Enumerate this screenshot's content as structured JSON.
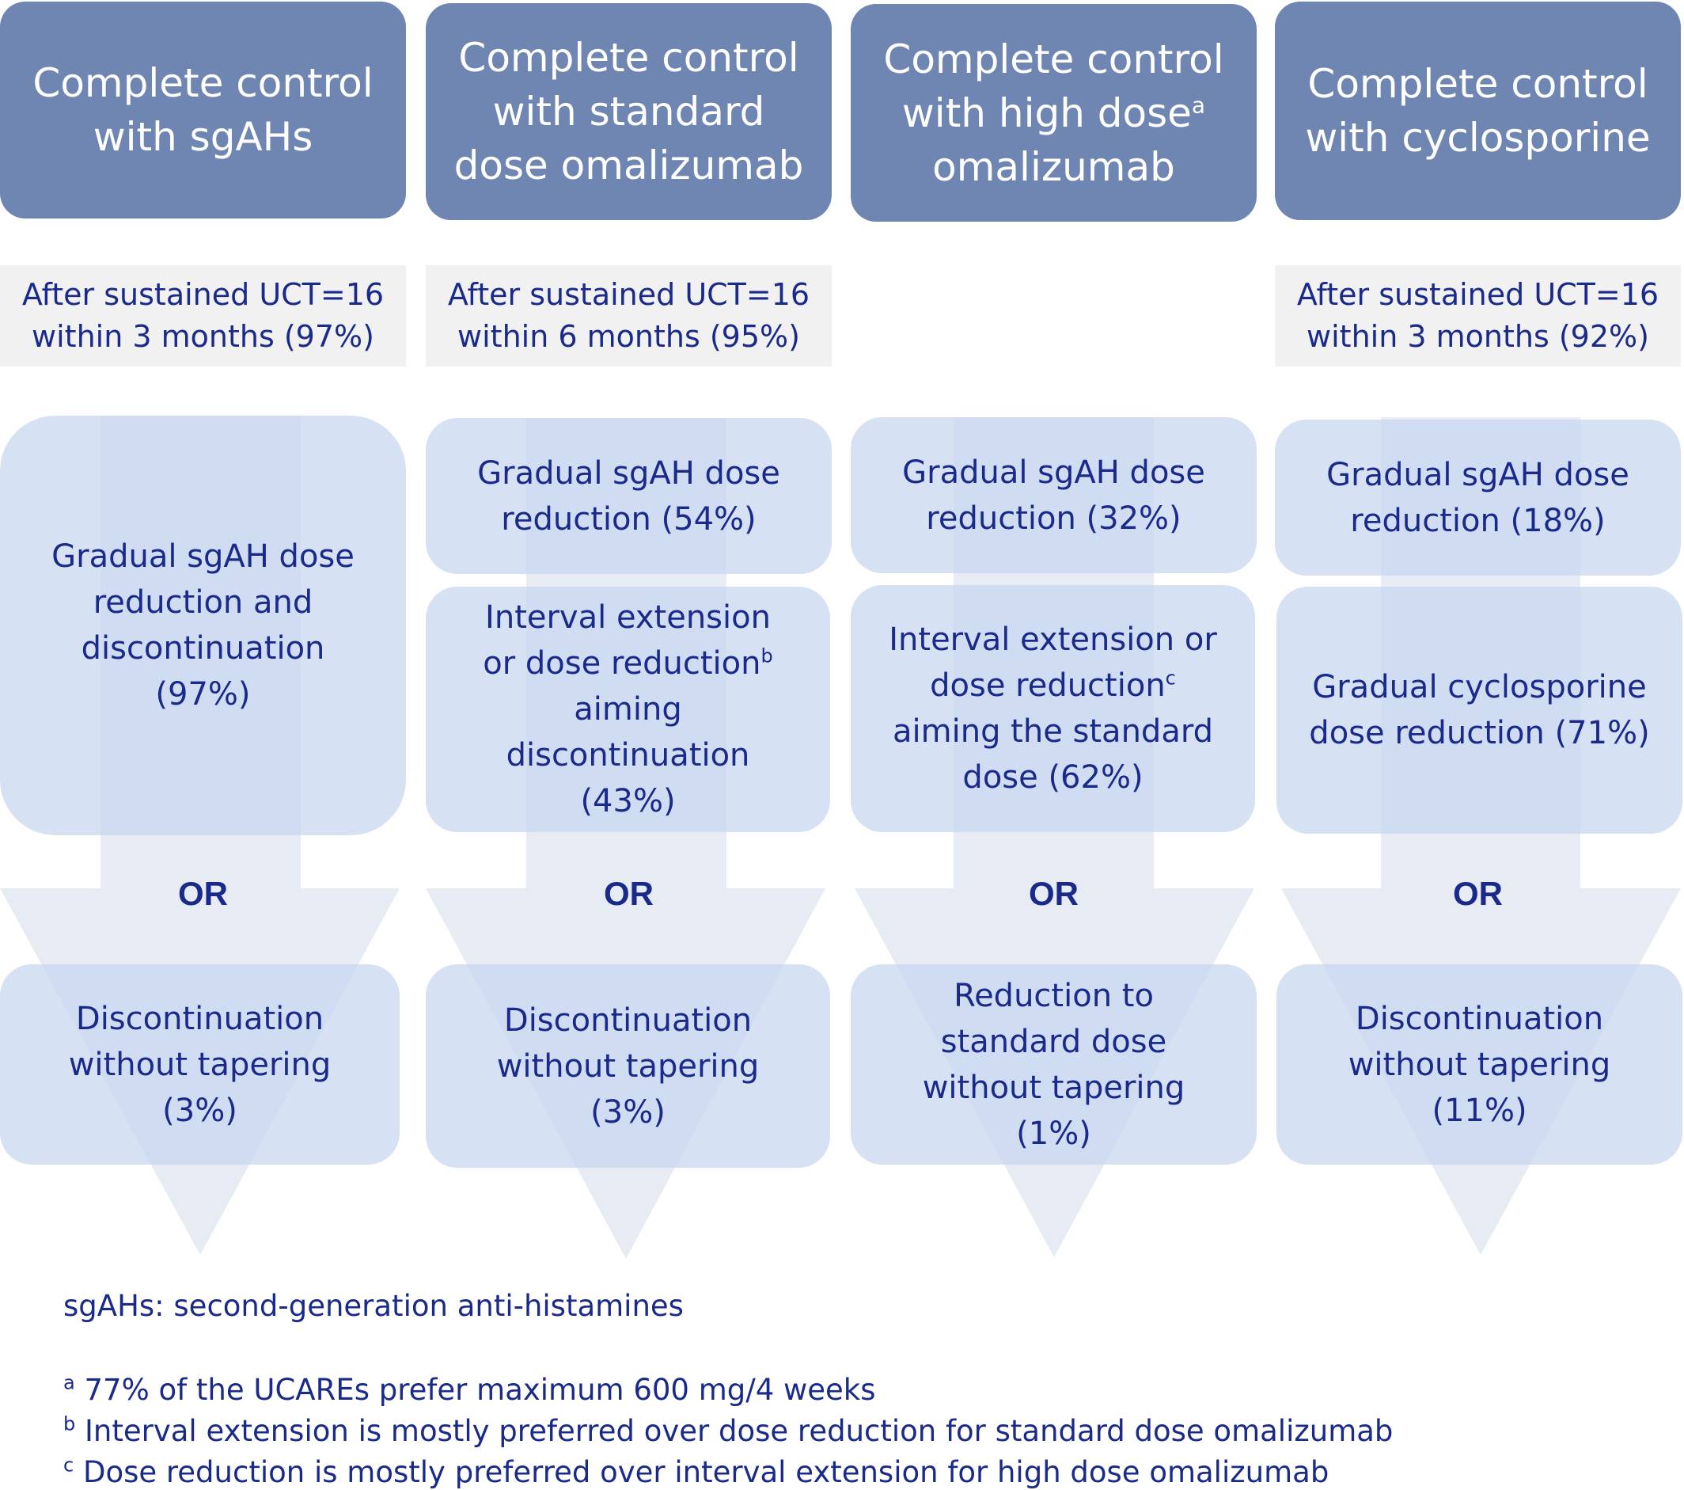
{
  "columns": [
    {
      "header": [
        "Complete control",
        "with sgAHs"
      ],
      "header_sup": "",
      "note": [
        "After sustained UCT=16",
        "within 3 months (97%)"
      ],
      "steps": [
        {
          "lines": [
            "Gradual sgAH dose",
            "reduction and",
            "discontinuation",
            "(97%)"
          ],
          "sup": "",
          "sup_after_line": -1
        }
      ],
      "or": "OR",
      "alternative": [
        "Discontinuation",
        "without tapering",
        "(3%)"
      ]
    },
    {
      "header": [
        "Complete control",
        "with standard",
        "dose omalizumab"
      ],
      "header_sup": "",
      "note": [
        "After sustained UCT=16",
        "within 6 months (95%)"
      ],
      "steps": [
        {
          "lines": [
            "Gradual sgAH dose",
            "reduction (54%)"
          ],
          "sup": "",
          "sup_after_line": -1
        },
        {
          "lines": [
            "Interval extension",
            "or dose reduction",
            "aiming",
            "discontinuation",
            "(43%)"
          ],
          "sup": "b",
          "sup_after_line": 1
        }
      ],
      "or": "OR",
      "alternative": [
        "Discontinuation",
        "without tapering",
        "(3%)"
      ]
    },
    {
      "header": [
        "Complete control",
        "with high dose",
        "omalizumab"
      ],
      "header_sup": "a",
      "note": [],
      "steps": [
        {
          "lines": [
            "Gradual sgAH dose",
            "reduction (32%)"
          ],
          "sup": "",
          "sup_after_line": -1
        },
        {
          "lines": [
            "Interval extension or",
            "dose reduction",
            "aiming the standard",
            "dose (62%)"
          ],
          "sup": "c",
          "sup_after_line": 1
        }
      ],
      "or": "OR",
      "alternative": [
        "Reduction to",
        "standard dose",
        "without tapering",
        "(1%)"
      ]
    },
    {
      "header": [
        "Complete control",
        "with cyclosporine"
      ],
      "header_sup": "",
      "note": [
        "After sustained UCT=16",
        "within 3 months (92%)"
      ],
      "steps": [
        {
          "lines": [
            "Gradual sgAH dose",
            "reduction (18%)"
          ],
          "sup": "",
          "sup_after_line": -1
        },
        {
          "lines": [
            "Gradual cyclosporine",
            "dose reduction (71%)"
          ],
          "sup": "",
          "sup_after_line": -1
        }
      ],
      "or": "OR",
      "alternative": [
        "Discontinuation",
        "without tapering",
        "(11%)"
      ]
    }
  ],
  "footer": {
    "abbreviation": "sgAHs: second-generation anti-histamines",
    "notes": [
      {
        "mark": "a",
        "text": "77% of the UCAREs prefer maximum 600 mg/4 weeks"
      },
      {
        "mark": "b",
        "text": "Interval extension is mostly preferred over dose reduction for standard dose omalizumab"
      },
      {
        "mark": "c",
        "text": "Dose reduction is mostly preferred over interval extension for high dose omalizumab"
      }
    ]
  },
  "colors": {
    "header_fill": "#6f86b3",
    "box_fill": "#c8d6f0",
    "arrow_fill": "#b4c1dc",
    "note_fill": "#f1f1f1",
    "text": "#1a2a8a"
  }
}
